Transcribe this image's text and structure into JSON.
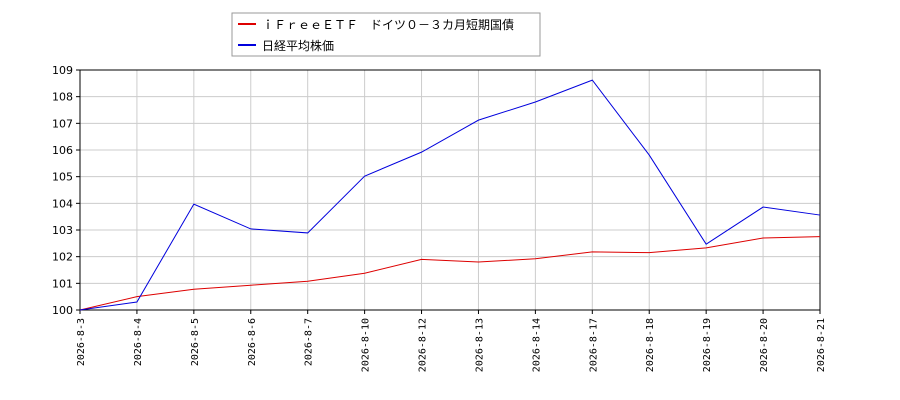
{
  "chart_data": {
    "type": "line",
    "categories": [
      "2026-8-3",
      "2026-8-4",
      "2026-8-5",
      "2026-8-6",
      "2026-8-7",
      "2026-8-10",
      "2026-8-12",
      "2026-8-13",
      "2026-8-14",
      "2026-8-17",
      "2026-8-18",
      "2026-8-19",
      "2026-8-20",
      "2026-8-21"
    ],
    "series": [
      {
        "name": "ｉＦｒｅｅＥＴＦ　ドイツ０－３カ月短期国債",
        "color": "#dd0000",
        "values": [
          100,
          100.5,
          100.78,
          100.93,
          101.08,
          101.38,
          101.9,
          101.8,
          101.92,
          102.18,
          102.15,
          102.33,
          102.7,
          102.75
        ]
      },
      {
        "name": "日経平均株価",
        "color": "#0000dd",
        "values": [
          100,
          100.3,
          103.97,
          103.04,
          102.89,
          105.02,
          105.92,
          107.12,
          107.8,
          108.62,
          105.81,
          102.47,
          103.86,
          103.56
        ]
      }
    ],
    "ylim": [
      100,
      109
    ],
    "yticks": [
      100,
      101,
      102,
      103,
      104,
      105,
      106,
      107,
      108,
      109
    ],
    "grid": true,
    "legend": "top"
  }
}
